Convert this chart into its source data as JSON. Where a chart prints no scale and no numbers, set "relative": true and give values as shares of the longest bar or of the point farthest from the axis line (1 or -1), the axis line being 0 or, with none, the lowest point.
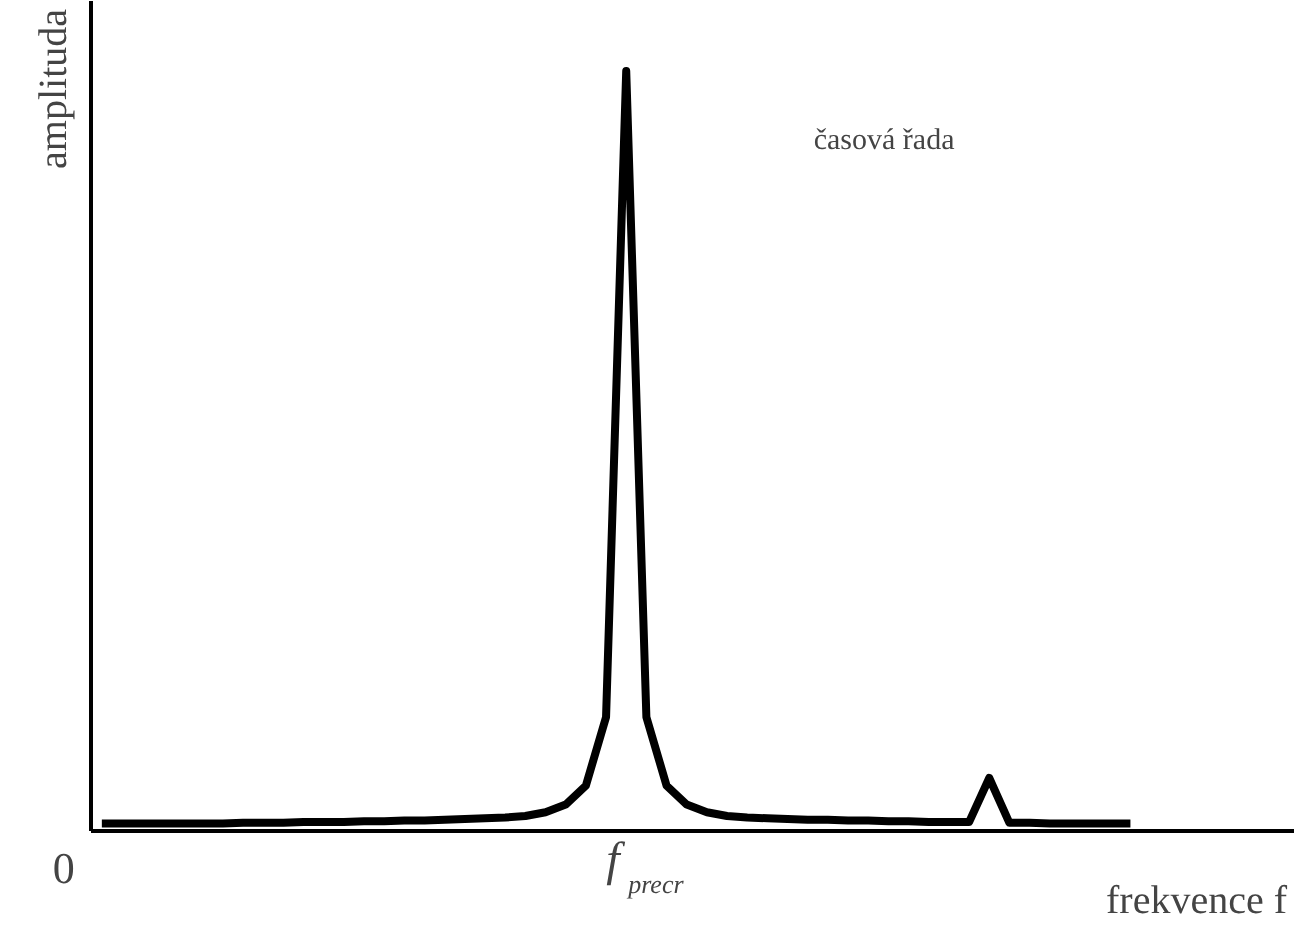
{
  "chart_data": {
    "type": "line",
    "relative": true,
    "xlabel": "frekvence f",
    "ylabel": "amplituda",
    "categories": [
      null,
      null,
      null,
      null,
      null,
      null,
      null,
      null,
      null,
      null,
      null,
      null,
      null,
      null,
      null,
      null,
      null,
      null,
      null,
      null,
      null,
      null,
      null,
      null,
      null,
      null,
      null,
      null,
      null,
      null,
      null,
      null,
      null,
      null,
      null,
      null,
      null,
      null,
      null,
      null,
      null,
      null,
      null,
      null,
      null,
      null,
      null,
      null,
      null,
      null,
      null,
      null
    ],
    "series": [
      {
        "color": "#000000",
        "values": [
          0.01,
          0.01,
          0.01,
          0.01,
          0.01,
          0.01,
          0.01,
          0.011,
          0.011,
          0.011,
          0.012,
          0.012,
          0.012,
          0.013,
          0.013,
          0.014,
          0.014,
          0.015,
          0.016,
          0.017,
          0.018,
          0.02,
          0.025,
          0.035,
          0.06,
          0.15,
          1,
          0.15,
          0.06,
          0.035,
          0.025,
          0.02,
          0.018,
          0.017,
          0.016,
          0.015,
          0.015,
          0.014,
          0.014,
          0.013,
          0.013,
          0.012,
          0.012,
          0.012,
          0.07,
          0.011,
          0.011,
          0.01,
          0.01,
          0.01,
          0.01,
          0.01
        ]
      }
    ],
    "annotations": [
      "0",
      "f$_{precr}$",
      "časová řada"
    ]
  }
}
